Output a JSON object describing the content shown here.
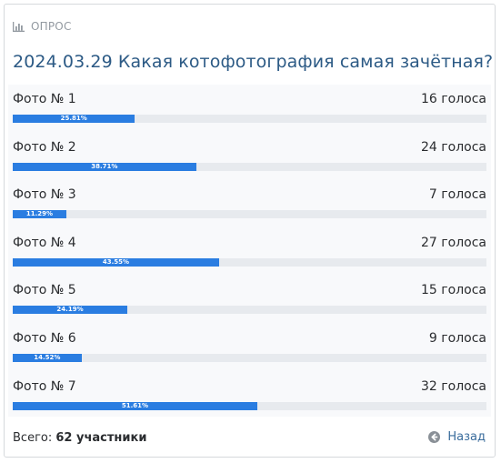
{
  "poll": {
    "kicker": "ОПРОС",
    "title": "2024.03.29 Какая котофотография самая зачётная?",
    "options": [
      {
        "label": "Фото № 1",
        "votes": "16 голоса",
        "percent": "25.81%",
        "fraction": 0.2581
      },
      {
        "label": "Фото № 2",
        "votes": "24 голоса",
        "percent": "38.71%",
        "fraction": 0.3871
      },
      {
        "label": "Фото № 3",
        "votes": "7 голоса",
        "percent": "11.29%",
        "fraction": 0.1129
      },
      {
        "label": "Фото № 4",
        "votes": "27 голоса",
        "percent": "43.55%",
        "fraction": 0.4355
      },
      {
        "label": "Фото № 5",
        "votes": "15 голоса",
        "percent": "24.19%",
        "fraction": 0.2419
      },
      {
        "label": "Фото № 6",
        "votes": "9 голоса",
        "percent": "14.52%",
        "fraction": 0.1452
      },
      {
        "label": "Фото № 7",
        "votes": "32 голоса",
        "percent": "51.61%",
        "fraction": 0.5161
      }
    ],
    "footer": {
      "total_label": "Всего:",
      "total_value": "62 участники",
      "back_label": "Назад"
    }
  },
  "colors": {
    "bar_fill": "#2a7de1",
    "bar_track": "#e7eaee",
    "title": "#2c5a85",
    "kicker": "#939aa1",
    "link": "#3a6c9c"
  },
  "icons": {
    "kicker": "bar-chart-icon",
    "back": "arrow-left-circle-icon"
  }
}
